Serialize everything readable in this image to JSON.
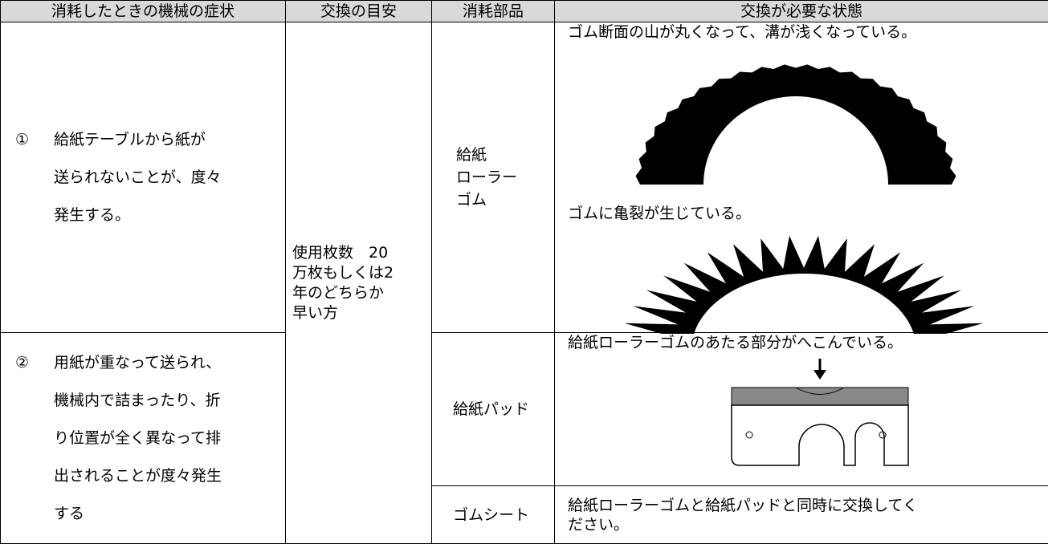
{
  "table": {
    "headers": [
      "消耗したときの機械の症状",
      "交換の目安",
      "消耗部品",
      "交換が必要な状態"
    ],
    "symptoms": [
      {
        "mark": "①",
        "lines": [
          "給紙テーブルから紙が",
          "送られないことが、度々",
          "発生する。"
        ]
      },
      {
        "mark": "②",
        "lines": [
          "用紙が重なって送られ、",
          "機械内で詰まったり、折",
          "り位置が全く異なって排",
          "出されることが度々発生",
          "する"
        ]
      }
    ],
    "interval": [
      "使用枚数　20",
      "万枚もしくは2",
      "年のどちらか",
      "早い方"
    ],
    "parts": [
      {
        "name": [
          "給紙",
          "ローラー",
          "ゴム"
        ],
        "conditions": [
          "ゴム断面の山が丸くなって、溝が浅くなっている。",
          "ゴムに亀裂が生じている。"
        ]
      },
      {
        "name": [
          "給紙パッド"
        ],
        "conditions": [
          "給紙ローラーゴムのあたる部分がへこんでいる。"
        ]
      },
      {
        "name": [
          "ゴムシート"
        ],
        "conditions": [
          "給紙ローラーゴムと給紙パッドと同時に交換してく",
          "ださい。"
        ]
      }
    ]
  }
}
